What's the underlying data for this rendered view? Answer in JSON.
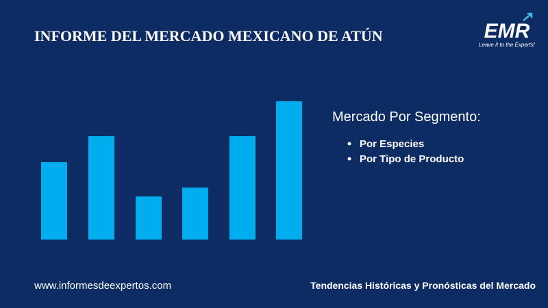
{
  "header": {
    "title": "INFORME DEL MERCADO MEXICANO DE ATÚN"
  },
  "logo": {
    "name": "EMR",
    "tagline": "Leave it to the Experts!"
  },
  "segment": {
    "heading": "Mercado Por Segmento:",
    "items": [
      "Por Especies",
      "Por Tipo de Producto"
    ]
  },
  "footer": {
    "website": "www.informesdeexpertos.com",
    "tagline": "Tendencias Históricas y Pronósticas del Mercado"
  }
}
